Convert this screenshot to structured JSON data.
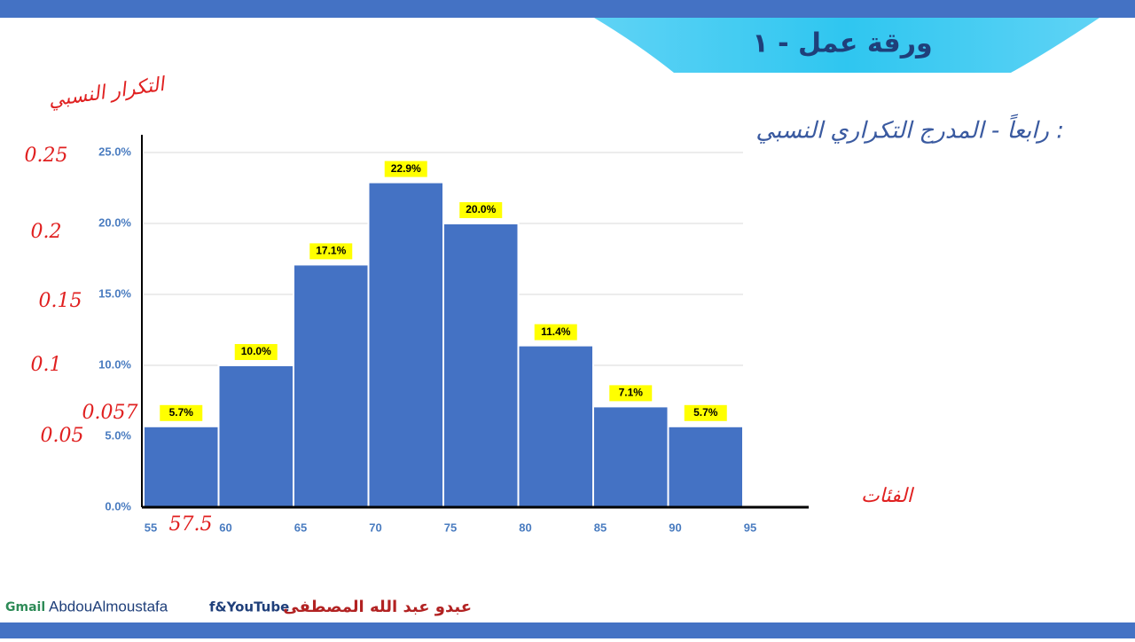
{
  "header": {
    "title": "ورقة عمل - ١"
  },
  "subtitle": "رابعاً - المدرج التكراري النسبي :",
  "chart_data": {
    "type": "histogram",
    "bins": [
      55,
      60,
      65,
      70,
      75,
      80,
      85,
      90,
      95
    ],
    "values": [
      5.7,
      10.0,
      17.1,
      22.9,
      20.0,
      11.4,
      7.1,
      5.7
    ],
    "value_labels": [
      "5.7%",
      "10.0%",
      "17.1%",
      "22.9%",
      "20.0%",
      "11.4%",
      "7.1%",
      "5.7%"
    ],
    "color": "#4472c4",
    "xlim": [
      55,
      95
    ],
    "xticks": [
      55,
      60,
      65,
      70,
      75,
      80,
      85,
      90,
      95
    ],
    "ylim": [
      0,
      25
    ],
    "yticks": [
      {
        "value": 0,
        "label": "0.0%"
      },
      {
        "value": 5,
        "label": "5.0%"
      },
      {
        "value": 10,
        "label": "10.0%"
      },
      {
        "value": 15,
        "label": "15.0%"
      },
      {
        "value": 20,
        "label": "20.0%"
      },
      {
        "value": 25,
        "label": "25.0%"
      }
    ],
    "grid": true,
    "annotations": [
      "التكرار النسبي",
      "0.25",
      "0.2",
      "0.15",
      "0.1",
      "0.057",
      "0.05",
      "57.5",
      "الفئات"
    ]
  },
  "footer": {
    "email_label": "Gmail",
    "handle": "AbdouAlmoustafa",
    "social": "f&YouTube",
    "author": "عبدو عبد الله المصطفى"
  }
}
